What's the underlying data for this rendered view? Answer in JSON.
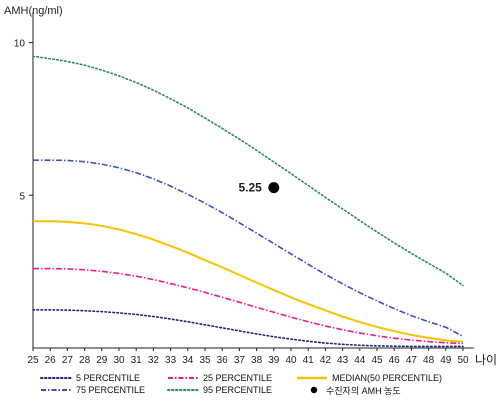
{
  "chart_data": {
    "type": "line",
    "ylabel": "AMH(ng/ml)",
    "xlabel": "나이",
    "x": [
      25,
      26,
      27,
      28,
      29,
      30,
      31,
      32,
      33,
      34,
      35,
      36,
      37,
      38,
      39,
      40,
      41,
      42,
      43,
      44,
      45,
      46,
      47,
      48,
      49,
      50
    ],
    "xlim": [
      25,
      50
    ],
    "ylim": [
      0,
      11
    ],
    "yticks": [
      5,
      10
    ],
    "grid": false,
    "legend_position": "bottom",
    "series": [
      {
        "name": "5 PERCENTILE",
        "color": "#1a237e",
        "style": "dotted",
        "values": [
          1.25,
          1.25,
          1.24,
          1.22,
          1.19,
          1.15,
          1.1,
          1.03,
          0.95,
          0.86,
          0.76,
          0.66,
          0.56,
          0.46,
          0.37,
          0.29,
          0.22,
          0.16,
          0.12,
          0.09,
          0.07,
          0.06,
          0.05,
          0.05,
          0.05,
          0.05
        ]
      },
      {
        "name": "25 PERCENTILE",
        "color": "#e91e8c",
        "style": "dashdot",
        "values": [
          2.6,
          2.6,
          2.59,
          2.56,
          2.51,
          2.44,
          2.35,
          2.24,
          2.11,
          1.97,
          1.82,
          1.66,
          1.5,
          1.33,
          1.17,
          1.01,
          0.86,
          0.72,
          0.6,
          0.49,
          0.4,
          0.32,
          0.26,
          0.21,
          0.17,
          0.15
        ]
      },
      {
        "name": "MEDIAN(50 PERCENTILE)",
        "color": "#f5c400",
        "style": "solid",
        "values": [
          4.15,
          4.15,
          4.13,
          4.08,
          4.0,
          3.88,
          3.73,
          3.55,
          3.34,
          3.12,
          2.88,
          2.64,
          2.39,
          2.14,
          1.9,
          1.66,
          1.44,
          1.23,
          1.03,
          0.85,
          0.69,
          0.55,
          0.43,
          0.33,
          0.25,
          0.2
        ]
      },
      {
        "name": "75 PERCENTILE",
        "color": "#3f51b5",
        "style": "dashdot",
        "values": [
          6.15,
          6.15,
          6.14,
          6.1,
          6.02,
          5.9,
          5.74,
          5.54,
          5.3,
          5.03,
          4.74,
          4.43,
          4.1,
          3.76,
          3.42,
          3.08,
          2.74,
          2.41,
          2.1,
          1.81,
          1.54,
          1.29,
          1.06,
          0.86,
          0.68,
          0.38
        ]
      },
      {
        "name": "95 PERCENTILE",
        "color": "#2e8b57",
        "style": "dotted",
        "values": [
          9.55,
          9.47,
          9.38,
          9.26,
          9.1,
          8.91,
          8.69,
          8.44,
          8.16,
          7.86,
          7.53,
          7.19,
          6.84,
          6.47,
          6.09,
          5.71,
          5.32,
          4.93,
          4.55,
          4.17,
          3.8,
          3.44,
          3.1,
          2.77,
          2.45,
          2.05
        ]
      }
    ],
    "point": {
      "name": "수진자의 AMH 농도",
      "x": 39,
      "y": 5.25,
      "label": "5.25",
      "color": "#000000"
    }
  }
}
